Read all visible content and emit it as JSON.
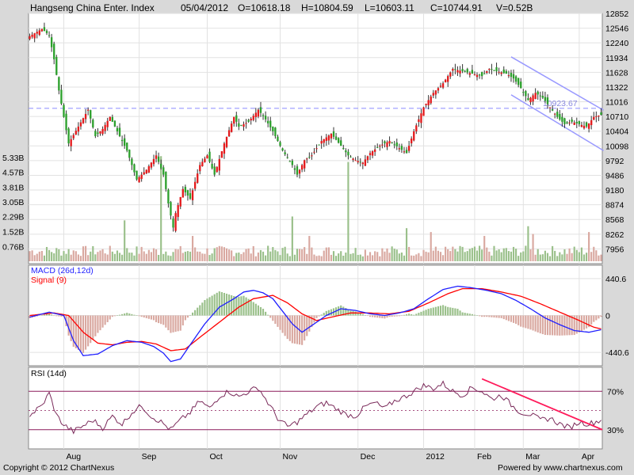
{
  "header": {
    "title": "Hangseng China Enter. Index",
    "date": "05/04/2012",
    "open": "O=10618.18",
    "high": "H=10804.59",
    "low": "L=10603.11",
    "close": "C=10744.91",
    "volume": "V=0.52B"
  },
  "footer": {
    "copyright": "Copyright © 2012 ChartNexus",
    "powered": "Powered by www.chartnexus.com"
  },
  "colors": {
    "up": "#e41a1c",
    "down": "#2ca02c",
    "vol_up": "#d9a8a0",
    "vol_down": "#9ac08a",
    "macd": "#1f1fff",
    "signal": "#ff0000",
    "rsi": "#7a2a5a",
    "rsi_bound": "#8b1a5a",
    "trendline": "#ff1a5a",
    "channel": "#9999ff"
  },
  "chart_data": [
    {
      "type": "candlestick",
      "title": "Hangseng China Enter. Index",
      "y_ticks": [
        12852,
        12546,
        12240,
        11934,
        11628,
        11322,
        11016,
        10710,
        10404,
        10098,
        9792,
        9486,
        9180,
        8874,
        8568,
        8262,
        7956
      ],
      "ylim": [
        7650,
        12852
      ],
      "x_labels": [
        "Aug",
        "Sep",
        "Oct",
        "Nov",
        "Dec",
        "2012",
        "Feb",
        "Mar",
        "Apr"
      ],
      "support_level": 10880,
      "annotation": "10923.67",
      "close_keypoints": [
        [
          0,
          12380
        ],
        [
          5,
          12530
        ],
        [
          8,
          12400
        ],
        [
          10,
          11900
        ],
        [
          12,
          11250
        ],
        [
          14,
          10700
        ],
        [
          16,
          10150
        ],
        [
          20,
          10500
        ],
        [
          24,
          10850
        ],
        [
          27,
          10300
        ],
        [
          30,
          10450
        ],
        [
          33,
          10700
        ],
        [
          36,
          10400
        ],
        [
          40,
          10000
        ],
        [
          44,
          9400
        ],
        [
          48,
          9600
        ],
        [
          52,
          9900
        ],
        [
          55,
          9500
        ],
        [
          57,
          8900
        ],
        [
          59,
          8400
        ],
        [
          60,
          8700
        ],
        [
          63,
          9200
        ],
        [
          66,
          9000
        ],
        [
          70,
          9700
        ],
        [
          73,
          9900
        ],
        [
          76,
          9500
        ],
        [
          80,
          10150
        ],
        [
          84,
          10700
        ],
        [
          86,
          10500
        ],
        [
          90,
          10600
        ],
        [
          94,
          10850
        ],
        [
          97,
          10650
        ],
        [
          100,
          10400
        ],
        [
          104,
          10000
        ],
        [
          108,
          9700
        ],
        [
          110,
          9500
        ],
        [
          113,
          9800
        ],
        [
          116,
          9900
        ],
        [
          120,
          10200
        ],
        [
          124,
          10350
        ],
        [
          128,
          10100
        ],
        [
          131,
          9900
        ],
        [
          134,
          9800
        ],
        [
          137,
          9750
        ],
        [
          140,
          9950
        ],
        [
          144,
          10100
        ],
        [
          148,
          10200
        ],
        [
          152,
          10050
        ],
        [
          155,
          9950
        ],
        [
          158,
          10400
        ],
        [
          162,
          10900
        ],
        [
          166,
          11200
        ],
        [
          170,
          11400
        ],
        [
          174,
          11700
        ],
        [
          178,
          11650
        ],
        [
          182,
          11600
        ],
        [
          186,
          11550
        ],
        [
          189,
          11700
        ],
        [
          192,
          11650
        ],
        [
          196,
          11600
        ],
        [
          199,
          11500
        ],
        [
          202,
          11300
        ],
        [
          205,
          11050
        ],
        [
          208,
          11200
        ],
        [
          211,
          11100
        ],
        [
          214,
          10900
        ],
        [
          217,
          10700
        ],
        [
          220,
          10550
        ],
        [
          223,
          10600
        ],
        [
          226,
          10550
        ],
        [
          229,
          10500
        ],
        [
          232,
          10700
        ],
        [
          235,
          10745
        ]
      ]
    },
    {
      "type": "bar",
      "title": "Volume",
      "y_ticks": [
        "5.33B",
        "4.57B",
        "3.81B",
        "3.05B",
        "2.29B",
        "1.52B",
        "0.76B"
      ],
      "ylim": [
        0,
        6.1
      ],
      "spikes": [
        [
          39,
          2.1
        ],
        [
          54,
          5.4
        ],
        [
          67,
          1.3
        ],
        [
          108,
          2.3
        ],
        [
          115,
          1.3
        ],
        [
          131,
          5.1
        ],
        [
          155,
          1.7
        ],
        [
          165,
          1.5
        ],
        [
          187,
          1.3
        ],
        [
          205,
          1.8
        ],
        [
          207,
          1.4
        ],
        [
          230,
          1.5
        ]
      ],
      "baseline_range": [
        0.25,
        0.8
      ]
    },
    {
      "type": "line",
      "title": "MACD (26d,12d)",
      "series_labels": [
        "MACD (26d,12d)",
        "Signal (9)"
      ],
      "y_ticks": [
        "440.6",
        "0",
        "-440.6"
      ],
      "ylim": [
        -600,
        600
      ],
      "macd_keypoints": [
        [
          0,
          -20
        ],
        [
          8,
          40
        ],
        [
          14,
          0
        ],
        [
          18,
          -300
        ],
        [
          22,
          -480
        ],
        [
          28,
          -460
        ],
        [
          34,
          -360
        ],
        [
          40,
          -300
        ],
        [
          46,
          -320
        ],
        [
          51,
          -370
        ],
        [
          55,
          -450
        ],
        [
          58,
          -550
        ],
        [
          62,
          -520
        ],
        [
          66,
          -350
        ],
        [
          72,
          -100
        ],
        [
          78,
          100
        ],
        [
          84,
          200
        ],
        [
          88,
          280
        ],
        [
          92,
          300
        ],
        [
          96,
          270
        ],
        [
          100,
          200
        ],
        [
          104,
          50
        ],
        [
          108,
          -100
        ],
        [
          112,
          -200
        ],
        [
          116,
          -120
        ],
        [
          122,
          0
        ],
        [
          128,
          80
        ],
        [
          134,
          60
        ],
        [
          140,
          20
        ],
        [
          146,
          0
        ],
        [
          152,
          30
        ],
        [
          158,
          80
        ],
        [
          164,
          200
        ],
        [
          170,
          310
        ],
        [
          176,
          350
        ],
        [
          182,
          330
        ],
        [
          188,
          300
        ],
        [
          194,
          260
        ],
        [
          200,
          180
        ],
        [
          206,
          80
        ],
        [
          212,
          -30
        ],
        [
          218,
          -110
        ],
        [
          224,
          -180
        ],
        [
          230,
          -200
        ],
        [
          235,
          -170
        ]
      ],
      "signal_keypoints": [
        [
          0,
          0
        ],
        [
          10,
          30
        ],
        [
          16,
          0
        ],
        [
          22,
          -200
        ],
        [
          28,
          -330
        ],
        [
          34,
          -350
        ],
        [
          40,
          -320
        ],
        [
          46,
          -310
        ],
        [
          52,
          -340
        ],
        [
          58,
          -420
        ],
        [
          64,
          -400
        ],
        [
          70,
          -260
        ],
        [
          78,
          -80
        ],
        [
          86,
          100
        ],
        [
          92,
          200
        ],
        [
          100,
          240
        ],
        [
          106,
          150
        ],
        [
          112,
          20
        ],
        [
          118,
          -60
        ],
        [
          124,
          -20
        ],
        [
          132,
          30
        ],
        [
          140,
          30
        ],
        [
          148,
          20
        ],
        [
          156,
          50
        ],
        [
          164,
          150
        ],
        [
          172,
          260
        ],
        [
          178,
          320
        ],
        [
          186,
          320
        ],
        [
          194,
          280
        ],
        [
          202,
          230
        ],
        [
          210,
          140
        ],
        [
          218,
          40
        ],
        [
          226,
          -60
        ],
        [
          232,
          -140
        ],
        [
          235,
          -160
        ]
      ]
    },
    {
      "type": "line",
      "title": "RSI (14d)",
      "y_ticks": [
        "70%",
        "30%"
      ],
      "ylim": [
        10,
        95
      ],
      "keypoints": [
        [
          0,
          45
        ],
        [
          5,
          55
        ],
        [
          8,
          68
        ],
        [
          11,
          45
        ],
        [
          14,
          35
        ],
        [
          18,
          28
        ],
        [
          22,
          34
        ],
        [
          26,
          40
        ],
        [
          30,
          32
        ],
        [
          34,
          44
        ],
        [
          38,
          36
        ],
        [
          42,
          48
        ],
        [
          46,
          55
        ],
        [
          50,
          44
        ],
        [
          54,
          38
        ],
        [
          58,
          30
        ],
        [
          62,
          40
        ],
        [
          66,
          48
        ],
        [
          70,
          60
        ],
        [
          74,
          52
        ],
        [
          78,
          65
        ],
        [
          82,
          70
        ],
        [
          86,
          64
        ],
        [
          90,
          70
        ],
        [
          94,
          74
        ],
        [
          98,
          58
        ],
        [
          102,
          42
        ],
        [
          106,
          33
        ],
        [
          110,
          38
        ],
        [
          114,
          46
        ],
        [
          118,
          54
        ],
        [
          122,
          58
        ],
        [
          126,
          52
        ],
        [
          130,
          46
        ],
        [
          134,
          44
        ],
        [
          138,
          54
        ],
        [
          142,
          58
        ],
        [
          146,
          52
        ],
        [
          150,
          60
        ],
        [
          154,
          64
        ],
        [
          158,
          70
        ],
        [
          162,
          76
        ],
        [
          166,
          73
        ],
        [
          170,
          78
        ],
        [
          174,
          70
        ],
        [
          178,
          66
        ],
        [
          182,
          74
        ],
        [
          186,
          70
        ],
        [
          190,
          62
        ],
        [
          194,
          66
        ],
        [
          198,
          56
        ],
        [
          202,
          48
        ],
        [
          206,
          46
        ],
        [
          210,
          40
        ],
        [
          214,
          42
        ],
        [
          218,
          36
        ],
        [
          222,
          32
        ],
        [
          226,
          38
        ],
        [
          230,
          36
        ],
        [
          235,
          40
        ]
      ],
      "trendline_from": [
        [
          186,
          83
        ],
        [
          235,
          32
        ]
      ]
    }
  ]
}
